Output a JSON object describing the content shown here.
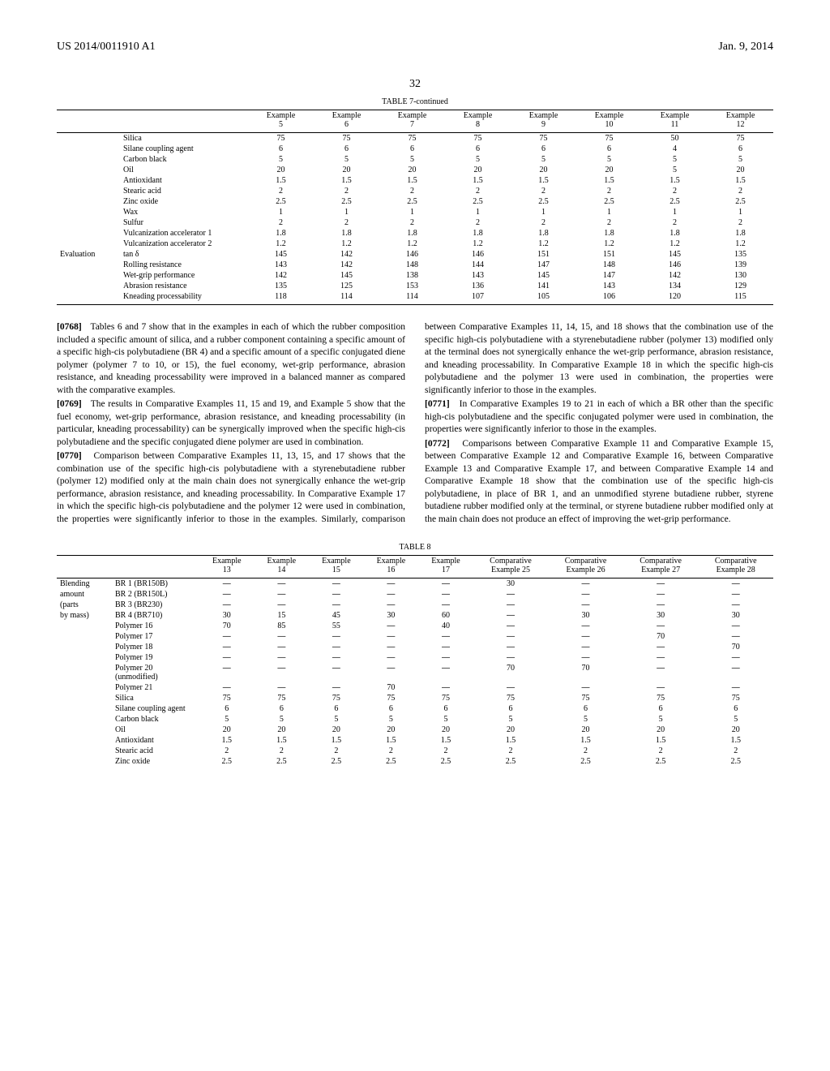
{
  "header": {
    "pub_num": "US 2014/0011910 A1",
    "date": "Jan. 9, 2014",
    "page": "32"
  },
  "table7": {
    "title": "TABLE 7-continued",
    "col_headers": [
      "Example 5",
      "Example 6",
      "Example 7",
      "Example 8",
      "Example 9",
      "Example 10",
      "Example 11",
      "Example 12"
    ],
    "cat_eval": "Evaluation",
    "rows": [
      {
        "label": "Silica",
        "v": [
          "75",
          "75",
          "75",
          "75",
          "75",
          "75",
          "50",
          "75"
        ]
      },
      {
        "label": "Silane coupling agent",
        "v": [
          "6",
          "6",
          "6",
          "6",
          "6",
          "6",
          "4",
          "6"
        ]
      },
      {
        "label": "Carbon black",
        "v": [
          "5",
          "5",
          "5",
          "5",
          "5",
          "5",
          "5",
          "5"
        ]
      },
      {
        "label": "Oil",
        "v": [
          "20",
          "20",
          "20",
          "20",
          "20",
          "20",
          "5",
          "20"
        ]
      },
      {
        "label": "Antioxidant",
        "v": [
          "1.5",
          "1.5",
          "1.5",
          "1.5",
          "1.5",
          "1.5",
          "1.5",
          "1.5"
        ]
      },
      {
        "label": "Stearic acid",
        "v": [
          "2",
          "2",
          "2",
          "2",
          "2",
          "2",
          "2",
          "2"
        ]
      },
      {
        "label": "Zinc oxide",
        "v": [
          "2.5",
          "2.5",
          "2.5",
          "2.5",
          "2.5",
          "2.5",
          "2.5",
          "2.5"
        ]
      },
      {
        "label": "Wax",
        "v": [
          "1",
          "1",
          "1",
          "1",
          "1",
          "1",
          "1",
          "1"
        ]
      },
      {
        "label": "Sulfur",
        "v": [
          "2",
          "2",
          "2",
          "2",
          "2",
          "2",
          "2",
          "2"
        ]
      },
      {
        "label": "Vulcanization accelerator 1",
        "v": [
          "1.8",
          "1.8",
          "1.8",
          "1.8",
          "1.8",
          "1.8",
          "1.8",
          "1.8"
        ]
      },
      {
        "label": "Vulcanization accelerator 2",
        "v": [
          "1.2",
          "1.2",
          "1.2",
          "1.2",
          "1.2",
          "1.2",
          "1.2",
          "1.2"
        ]
      }
    ],
    "eval_rows": [
      {
        "label": "tan δ",
        "v": [
          "145",
          "142",
          "146",
          "146",
          "151",
          "151",
          "145",
          "135"
        ]
      },
      {
        "label": "Rolling resistance",
        "v": [
          "143",
          "142",
          "148",
          "144",
          "147",
          "148",
          "146",
          "139"
        ]
      },
      {
        "label": "Wet-grip performance",
        "v": [
          "142",
          "145",
          "138",
          "143",
          "145",
          "147",
          "142",
          "130"
        ]
      },
      {
        "label": "Abrasion resistance",
        "v": [
          "135",
          "125",
          "153",
          "136",
          "141",
          "143",
          "134",
          "129"
        ]
      },
      {
        "label": "Kneading processability",
        "v": [
          "118",
          "114",
          "114",
          "107",
          "105",
          "106",
          "120",
          "115"
        ]
      }
    ]
  },
  "paragraphs": {
    "p0768_num": "[0768]",
    "p0768": "Tables 6 and 7 show that in the examples in each of which the rubber composition included a specific amount of silica, and a rubber component containing a specific amount of a specific high-cis polybutadiene (BR 4) and a specific amount of a specific conjugated diene polymer (polymer 7 to 10, or 15), the fuel economy, wet-grip performance, abrasion resistance, and kneading processability were improved in a balanced manner as compared with the comparative examples.",
    "p0769_num": "[0769]",
    "p0769": "The results in Comparative Examples 11, 15 and 19, and Example 5 show that the fuel economy, wet-grip performance, abrasion resistance, and kneading processability (in particular, kneading processability) can be synergically improved when the specific high-cis polybutadiene and the specific conjugated diene polymer are used in combination.",
    "p0770_num": "[0770]",
    "p0770a": "Comparison between Comparative Examples 11, 13, 15, and 17 shows that the combination use of the specific high-cis polybutadiene with a styrenebutadiene rubber (polymer 12) modified only at the main chain does not synergically enhance the wet-grip performance, abrasion resistance, and kneading processability. In Comparative Example 17 in which the specific high-cis polybutadiene and the polymer 12 were used in combination, the properties were significantly inferior to those in the examples. Similarly, comparison",
    "p0770b": "between Comparative Examples 11, 14, 15, and 18 shows that the combination use of the specific high-cis polybutadiene with a styrenebutadiene rubber (polymer 13) modified only at the terminal does not synergically enhance the wet-grip performance, abrasion resistance, and kneading processability. In Comparative Example 18 in which the specific high-cis polybutadiene and the polymer 13 were used in combination, the properties were significantly inferior to those in the examples.",
    "p0771_num": "[0771]",
    "p0771": "In Comparative Examples 19 to 21 in each of which a BR other than the specific high-cis polybutadiene and the specific conjugated polymer were used in combination, the properties were significantly inferior to those in the examples.",
    "p0772_num": "[0772]",
    "p0772": "Comparisons between Comparative Example 11 and Comparative Example 15, between Comparative Example 12 and Comparative Example 16, between Comparative Example 13 and Comparative Example 17, and between Comparative Example 14 and Comparative Example 18 show that the combination use of the specific high-cis polybutadiene, in place of BR 1, and an unmodified styrene butadiene rubber, styrene butadiene rubber modified only at the terminal, or styrene butadiene rubber modified only at the main chain does not produce an effect of improving the wet-grip performance."
  },
  "table8": {
    "title": "TABLE 8",
    "col_headers": [
      "Example 13",
      "Example 14",
      "Example 15",
      "Example 16",
      "Example 17",
      "Comparative Example 25",
      "Comparative Example 26",
      "Comparative Example 27",
      "Comparative Example 28"
    ],
    "cat_blend_l1": "Blending",
    "cat_blend_l2": "amount",
    "cat_blend_l3": "(parts",
    "cat_blend_l4": "by mass)",
    "rows": [
      {
        "label": "BR 1 (BR150B)",
        "v": [
          "—",
          "—",
          "—",
          "—",
          "—",
          "30",
          "—",
          "—",
          "—"
        ]
      },
      {
        "label": "BR 2 (BR150L)",
        "v": [
          "—",
          "—",
          "—",
          "—",
          "—",
          "—",
          "—",
          "—",
          "—"
        ]
      },
      {
        "label": "BR 3 (BR230)",
        "v": [
          "—",
          "—",
          "—",
          "—",
          "—",
          "—",
          "—",
          "—",
          "—"
        ]
      },
      {
        "label": "BR 4 (BR710)",
        "v": [
          "30",
          "15",
          "45",
          "30",
          "60",
          "—",
          "30",
          "30",
          "30"
        ]
      },
      {
        "label": "Polymer 16",
        "v": [
          "70",
          "85",
          "55",
          "—",
          "40",
          "—",
          "—",
          "—",
          "—"
        ]
      },
      {
        "label": "Polymer 17",
        "v": [
          "—",
          "—",
          "—",
          "—",
          "—",
          "—",
          "—",
          "70",
          "—"
        ]
      },
      {
        "label": "Polymer 18",
        "v": [
          "—",
          "—",
          "—",
          "—",
          "—",
          "—",
          "—",
          "—",
          "70"
        ]
      },
      {
        "label": "Polymer 19",
        "v": [
          "—",
          "—",
          "—",
          "—",
          "—",
          "—",
          "—",
          "—",
          "—"
        ]
      },
      {
        "label": "Polymer 20 (unmodified)",
        "v": [
          "—",
          "—",
          "—",
          "—",
          "—",
          "70",
          "70",
          "—",
          "—"
        ]
      },
      {
        "label": "Polymer 21",
        "v": [
          "—",
          "—",
          "—",
          "70",
          "—",
          "—",
          "—",
          "—",
          "—"
        ]
      },
      {
        "label": "Silica",
        "v": [
          "75",
          "75",
          "75",
          "75",
          "75",
          "75",
          "75",
          "75",
          "75"
        ]
      },
      {
        "label": "Silane coupling agent",
        "v": [
          "6",
          "6",
          "6",
          "6",
          "6",
          "6",
          "6",
          "6",
          "6"
        ]
      },
      {
        "label": "Carbon black",
        "v": [
          "5",
          "5",
          "5",
          "5",
          "5",
          "5",
          "5",
          "5",
          "5"
        ]
      },
      {
        "label": "Oil",
        "v": [
          "20",
          "20",
          "20",
          "20",
          "20",
          "20",
          "20",
          "20",
          "20"
        ]
      },
      {
        "label": "Antioxidant",
        "v": [
          "1.5",
          "1.5",
          "1.5",
          "1.5",
          "1.5",
          "1.5",
          "1.5",
          "1.5",
          "1.5"
        ]
      },
      {
        "label": "Stearic acid",
        "v": [
          "2",
          "2",
          "2",
          "2",
          "2",
          "2",
          "2",
          "2",
          "2"
        ]
      },
      {
        "label": "Zinc oxide",
        "v": [
          "2.5",
          "2.5",
          "2.5",
          "2.5",
          "2.5",
          "2.5",
          "2.5",
          "2.5",
          "2.5"
        ]
      }
    ]
  }
}
